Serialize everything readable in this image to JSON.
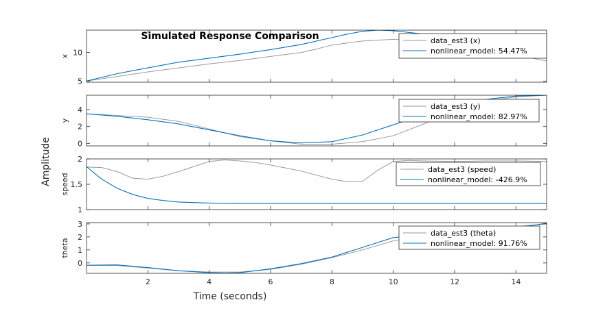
{
  "chart_data": {
    "type": "line",
    "title": "Simulated Response Comparison",
    "xlabel": "Time (seconds)",
    "ylabel": "Amplitude",
    "xlim": [
      0,
      15
    ],
    "xticks": [
      2,
      4,
      6,
      8,
      10,
      12,
      14
    ],
    "colors": {
      "measured": "#999999",
      "model": "#0072BD",
      "axes": "#262626",
      "title": "#000000"
    },
    "legend_placement": "top-right",
    "grid": false,
    "subplots": [
      {
        "ylabel": "x",
        "ylim": [
          4.8,
          13.9
        ],
        "yticks": [
          5,
          10
        ],
        "series": [
          {
            "name": "data_est3 (x)",
            "x": [
              0,
              1,
              2,
              3,
              4,
              5,
              6,
              7,
              7.5,
              8,
              9,
              10,
              11,
              12,
              13,
              14,
              15
            ],
            "y": [
              5,
              5.8,
              6.6,
              7.3,
              8.0,
              8.6,
              9.3,
              10.0,
              10.6,
              11.3,
              12.0,
              12.3,
              12.0,
              11.5,
              10.6,
              9.6,
              8.5
            ]
          },
          {
            "name": "nonlinear_model: 54.47%",
            "x": [
              0,
              1,
              2,
              3,
              4,
              5,
              6,
              7,
              8,
              8.5,
              9,
              9.5,
              10,
              11,
              12,
              13,
              14,
              15
            ],
            "y": [
              5,
              6.3,
              7.3,
              8.3,
              9.0,
              9.7,
              10.5,
              11.4,
              12.6,
              13.2,
              13.7,
              13.9,
              13.8,
              13.2,
              12.5,
              11.6,
              10.6,
              9.4
            ]
          }
        ]
      },
      {
        "ylabel": "y",
        "ylim": [
          -0.3,
          5.7
        ],
        "yticks": [
          0,
          2,
          4
        ],
        "series": [
          {
            "name": "data_est3 (y)",
            "x": [
              0,
              1,
              2,
              3,
              4,
              5,
              6,
              7,
              8,
              9,
              10,
              11,
              12,
              13,
              14,
              15
            ],
            "y": [
              3.5,
              3.3,
              3.1,
              2.6,
              1.7,
              0.8,
              0.3,
              -0.1,
              -0.1,
              0.2,
              0.9,
              2.3,
              3.9,
              5.0,
              5.5,
              5.7
            ]
          },
          {
            "name": "nonlinear_model: 82.97%",
            "x": [
              0,
              1,
              2,
              3,
              4,
              5,
              6,
              7,
              8,
              9,
              10,
              11,
              12,
              13,
              14,
              15
            ],
            "y": [
              3.5,
              3.2,
              2.8,
              2.3,
              1.6,
              0.9,
              0.3,
              0.05,
              0.2,
              1.0,
              2.2,
              3.4,
              4.5,
              5.2,
              5.6,
              5.7
            ]
          }
        ]
      },
      {
        "ylabel": "speed",
        "ylim": [
          1,
          2
        ],
        "yticks": [
          1,
          1.5,
          2
        ],
        "series": [
          {
            "name": "data_est3 (speed)",
            "x": [
              0,
              0.5,
              1,
              1.5,
              2,
              2.5,
              3,
              3.5,
              4,
              4.5,
              5,
              5.5,
              6,
              6.5,
              7,
              7.5,
              8,
              8.5,
              9,
              9.5,
              10,
              10.5,
              11,
              12,
              13,
              14,
              15
            ],
            "y": [
              1.84,
              1.83,
              1.75,
              1.62,
              1.6,
              1.66,
              1.75,
              1.85,
              1.95,
              1.98,
              1.96,
              1.93,
              1.88,
              1.82,
              1.76,
              1.68,
              1.6,
              1.55,
              1.56,
              1.78,
              1.95,
              1.97,
              1.96,
              1.95,
              1.96,
              1.96,
              1.95
            ]
          },
          {
            "name": "nonlinear_model: -426.9%",
            "x": [
              0,
              0.25,
              0.5,
              1,
              1.5,
              2,
              2.5,
              3,
              4,
              5,
              6,
              8,
              10,
              12,
              15
            ],
            "y": [
              1.85,
              1.72,
              1.6,
              1.42,
              1.3,
              1.22,
              1.18,
              1.15,
              1.13,
              1.12,
              1.12,
              1.12,
              1.12,
              1.12,
              1.12
            ]
          }
        ]
      },
      {
        "ylabel": "theta",
        "ylim": [
          -0.8,
          3.1
        ],
        "yticks": [
          0,
          1,
          2,
          3
        ],
        "series": [
          {
            "name": "data_est3 (theta)",
            "x": [
              0,
              1,
              2,
              3,
              4,
              5,
              6,
              7,
              8,
              9,
              10,
              11,
              12,
              13,
              14,
              15
            ],
            "y": [
              -0.18,
              -0.2,
              -0.4,
              -0.6,
              -0.7,
              -0.7,
              -0.5,
              -0.1,
              0.4,
              1.0,
              1.7,
              2.1,
              2.4,
              2.6,
              2.8,
              3.0
            ]
          },
          {
            "name": "nonlinear_model: 91.76%",
            "x": [
              0,
              1,
              2,
              3,
              4,
              4.5,
              5,
              6,
              7,
              8,
              9,
              10,
              11,
              12,
              13,
              14,
              15
            ],
            "y": [
              -0.18,
              -0.15,
              -0.35,
              -0.6,
              -0.75,
              -0.78,
              -0.75,
              -0.45,
              -0.05,
              0.45,
              1.2,
              1.95,
              2.15,
              2.2,
              2.4,
              2.7,
              3.05
            ]
          }
        ]
      }
    ]
  }
}
